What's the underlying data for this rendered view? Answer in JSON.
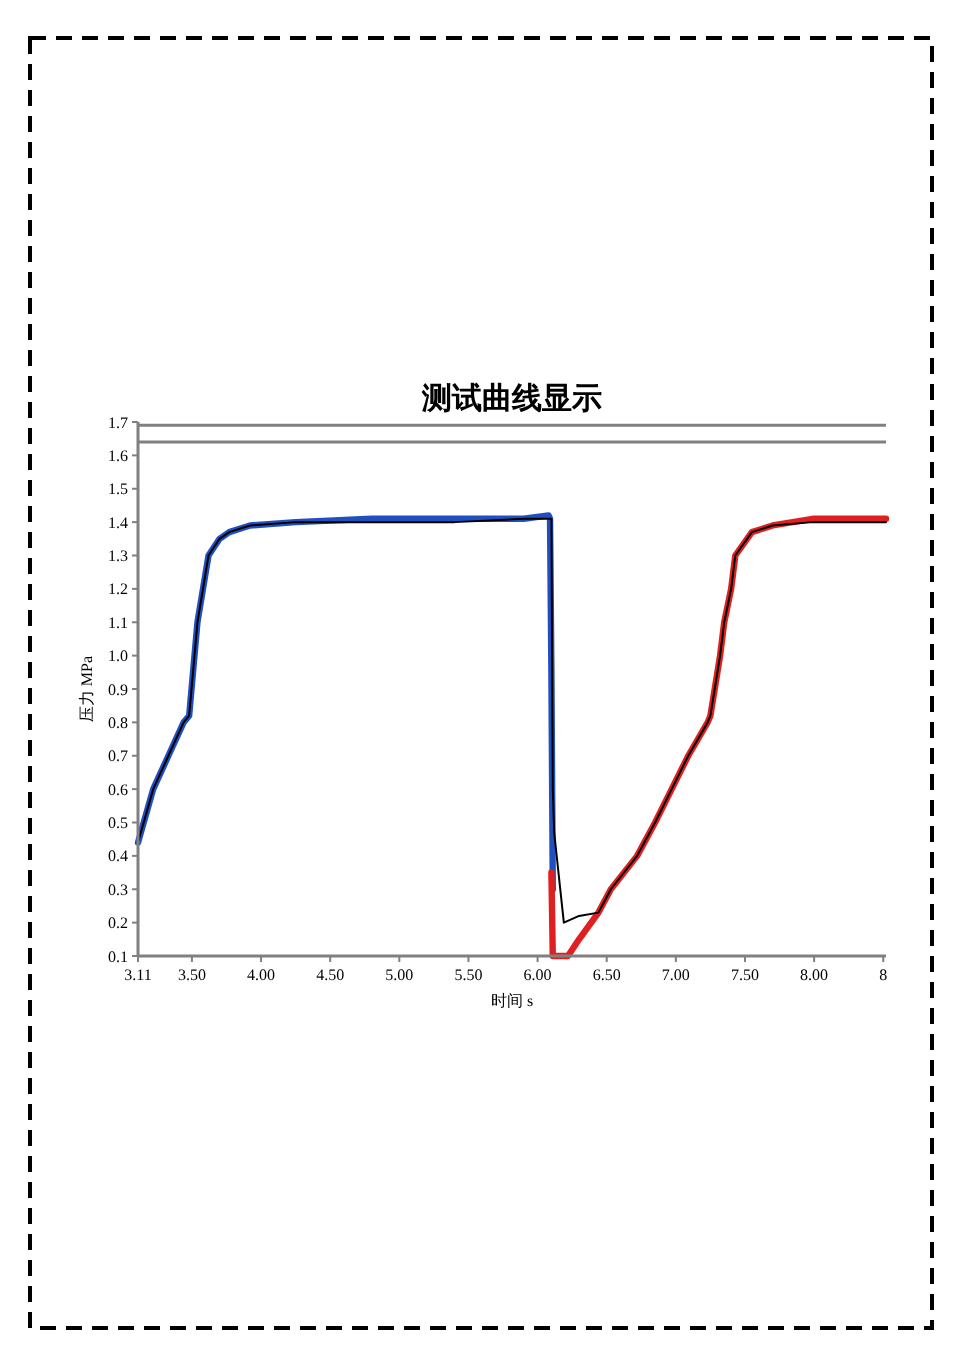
{
  "chart_data": {
    "type": "line",
    "title": "测试曲线显示",
    "xlabel": "时间 s",
    "ylabel": "压力 MPa",
    "xlim": [
      3.11,
      8.52
    ],
    "ylim": [
      0.1,
      1.7
    ],
    "xticks": [
      3.11,
      {
        "value": 3.5,
        "label": "3.50"
      },
      {
        "value": 4,
        "label": "4.00"
      },
      {
        "value": 4.5,
        "label": "4.50"
      },
      {
        "value": 5,
        "label": "5.00"
      },
      {
        "value": 5.5,
        "label": "5.50"
      },
      {
        "value": 6,
        "label": "6.00"
      },
      {
        "value": 6.5,
        "label": "6.50"
      },
      {
        "value": 7,
        "label": "7.00"
      },
      {
        "value": 7.5,
        "label": "7.50"
      },
      {
        "value": 8,
        "label": "8.00"
      },
      {
        "value": 8.5,
        "label": "8"
      }
    ],
    "yticks": [
      0.1,
      0.2,
      0.3,
      0.4,
      0.5,
      0.6,
      0.7,
      0.8,
      0.9,
      {
        "value": 1,
        "label": "1.0"
      },
      1.1,
      1.2,
      1.3,
      1.4,
      1.5,
      1.6,
      1.7
    ],
    "grid": false,
    "marker": "none",
    "line_style": "solid",
    "ref_lines": [
      {
        "axis": "y",
        "value": 1.69,
        "color": "#808080"
      },
      {
        "axis": "y",
        "value": 1.64,
        "color": "#808080"
      }
    ],
    "series": [
      {
        "color": "#2050c0",
        "x": [
          3.11,
          3.22,
          3.33,
          3.44,
          3.48,
          3.54,
          3.62,
          3.7,
          3.77,
          3.92,
          4.25,
          4.8,
          5.4,
          5.9,
          6.08,
          6.09,
          6.1,
          6.11
        ],
        "values": [
          0.44,
          0.6,
          0.7,
          0.8,
          0.82,
          1.1,
          1.3,
          1.35,
          1.37,
          1.39,
          1.4,
          1.41,
          1.41,
          1.41,
          1.42,
          1.41,
          0.95,
          0.3
        ]
      },
      {
        "color": "#e02020",
        "x": [
          6.1,
          6.11,
          6.15,
          6.22,
          6.3,
          6.44,
          6.53,
          6.72,
          6.85,
          6.97,
          7.09,
          7.23,
          7.25,
          7.32,
          7.35,
          7.4,
          7.43,
          7.55,
          7.7,
          7.99,
          8.3,
          8.52
        ],
        "values": [
          0.35,
          0.1,
          0.1,
          0.1,
          0.15,
          0.23,
          0.3,
          0.4,
          0.5,
          0.6,
          0.7,
          0.8,
          0.82,
          1.0,
          1.1,
          1.2,
          1.3,
          1.37,
          1.39,
          1.41,
          1.41,
          1.41
        ]
      },
      {
        "color": "#000000",
        "x": [
          3.11,
          3.22,
          3.33,
          3.44,
          3.48,
          3.54,
          3.62,
          3.7,
          3.77,
          3.92,
          4.25,
          4.8,
          5.4,
          5.9,
          6.1,
          6.11,
          6.12,
          6.19,
          6.3,
          6.44,
          6.53,
          6.72,
          6.85,
          6.97,
          7.09,
          7.23,
          7.25,
          7.32,
          7.35,
          7.4,
          7.43,
          7.55,
          7.7,
          7.99,
          8.3,
          8.52
        ],
        "values": [
          0.44,
          0.6,
          0.7,
          0.8,
          0.82,
          1.1,
          1.3,
          1.35,
          1.37,
          1.39,
          1.4,
          1.4,
          1.4,
          1.41,
          1.41,
          0.6,
          0.47,
          0.2,
          0.22,
          0.23,
          0.3,
          0.4,
          0.5,
          0.6,
          0.7,
          0.8,
          0.82,
          1.0,
          1.1,
          1.2,
          1.3,
          1.37,
          1.39,
          1.4,
          1.4,
          1.4
        ]
      }
    ]
  }
}
